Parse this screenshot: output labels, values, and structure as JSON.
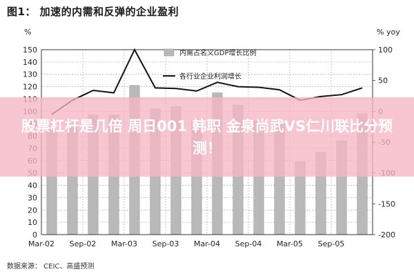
{
  "figure_title": "图1： 加速的内需和反弹的企业盈利",
  "source": "数据来源： CEIC、高盛预测",
  "overlay": {
    "text": "股票杠杆是几倍 周日001 韩职 金泉尚武VS仁川联比分预测！"
  },
  "colors": {
    "bar": "#b9b9b9",
    "bar_edge": "#8c8c8c",
    "line": "#111111",
    "banner": "#f6b6c4",
    "grid": "#999999"
  },
  "chart_data": {
    "type": "bar",
    "left_axis_unit": "%",
    "right_axis_unit": "% yoy",
    "ylim_left": [
      0,
      150
    ],
    "yticks_left": [
      "0",
      "10",
      "20",
      "30",
      "40",
      "50",
      "60",
      "70",
      "80",
      "90",
      "100",
      "110",
      "120",
      "130",
      "140",
      "150"
    ],
    "ylim_right": [
      -200,
      100
    ],
    "yticks_right": [
      "-200",
      "-150",
      "-100",
      "-50",
      "0",
      "50",
      "100"
    ],
    "xtick_labels": [
      "Mar-02",
      "Sep-02",
      "Mar-03",
      "Sep-03",
      "Mar-04",
      "Sep-04",
      "Mar-05",
      "Sep-05"
    ],
    "categories": [
      "Mar-02",
      "Jun-02",
      "Sep-02",
      "Dec-02",
      "Mar-03",
      "Jun-03",
      "Sep-03",
      "Dec-03",
      "Mar-04",
      "Jun-04",
      "Sep-04",
      "Dec-04",
      "Mar-05",
      "Jun-05",
      "Sep-05",
      "Dec-05"
    ],
    "grid": true,
    "legend_position": "top-center",
    "series": [
      {
        "name": "内需占名义GDP增长比例",
        "kind": "bar",
        "axis": "left",
        "values": [
          85,
          90,
          97,
          97,
          121,
          102,
          104,
          93,
          115,
          105,
          92,
          90,
          59,
          67,
          76,
          98
        ]
      },
      {
        "name": "各行业企业利润增长",
        "kind": "line",
        "axis": "right",
        "values": [
          -5,
          18,
          34,
          30,
          100,
          38,
          37,
          33,
          47,
          40,
          39,
          35,
          18,
          24,
          27,
          38
        ]
      }
    ]
  }
}
